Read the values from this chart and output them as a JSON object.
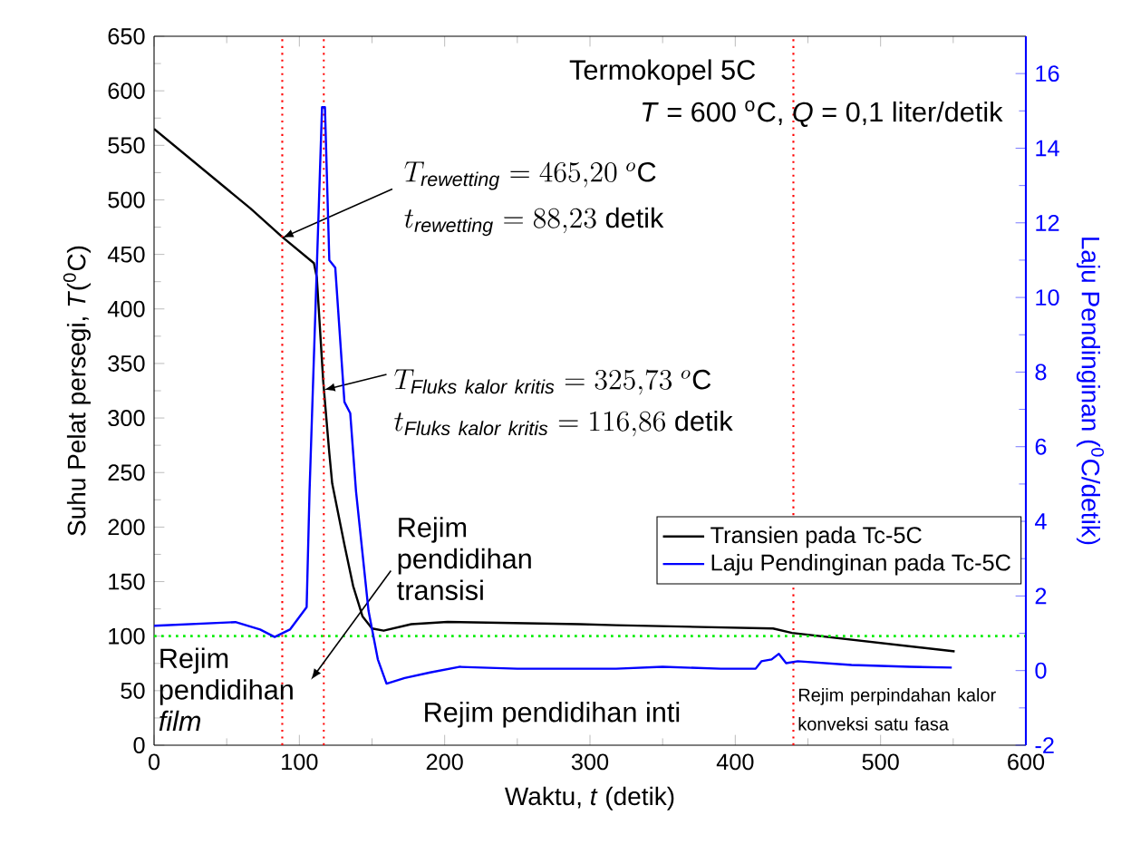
{
  "chart_data": {
    "type": "line",
    "title": "Termokopel 5C",
    "subtitle": "*T* = 600 $^{o}$C, *Q* = 0,1 liter/detik",
    "xlabel": "Waktu, *t* (detik)",
    "ylabel": "Suhu Pelat persegi, *T*($^{0}$C)",
    "y2label": "Laju Pendinginan ($^{0}$C/detik)",
    "series": [
      {
        "name": "Transien pada Tc-5C",
        "color": "#000000",
        "x": [
          0,
          66.5,
          88.2,
          110,
          112,
          116.4,
          120.6,
          122.6,
          131,
          137,
          143.5,
          150,
          158,
          177,
          202,
          293,
          318,
          426,
          439,
          551
        ],
        "values": [
          565,
          492,
          466,
          442,
          429,
          334,
          268,
          240,
          184,
          146,
          118,
          107,
          105,
          111,
          113,
          111,
          110,
          107,
          103,
          86
        ]
      },
      {
        "name": "Laju Pendinginan pada Tc-5C",
        "color": "#0000ff",
        "axis": "y2",
        "x": [
          0,
          56,
          73,
          83,
          93.5,
          105,
          107,
          115.6,
          117.6,
          120.6,
          124.7,
          131,
          135,
          139,
          147.6,
          154,
          160,
          172.5,
          190,
          210,
          250,
          293,
          318,
          350,
          390,
          414,
          418,
          425,
          430,
          435,
          443,
          480,
          520,
          549
        ],
        "values": [
          1.2,
          1.3,
          1.1,
          0.9,
          1.1,
          1.7,
          4.8,
          15.1,
          15.1,
          11.0,
          10.8,
          7.2,
          6.9,
          4.8,
          1.6,
          0.3,
          -0.35,
          -0.2,
          -0.05,
          0.1,
          0.05,
          0.05,
          0.05,
          0.1,
          0.05,
          0.05,
          0.25,
          0.3,
          0.45,
          0.2,
          0.25,
          0.15,
          0.1,
          0.08
        ]
      }
    ],
    "xlim": [
      0,
      600
    ],
    "xticks": [
      0,
      100,
      200,
      300,
      400,
      500,
      600
    ],
    "ylim": [
      0,
      650
    ],
    "yticks": [
      0,
      50,
      100,
      150,
      200,
      250,
      300,
      350,
      400,
      450,
      500,
      550,
      600,
      650
    ],
    "y2lim": [
      -2,
      17
    ],
    "y2ticks": [
      -2,
      0,
      2,
      4,
      6,
      8,
      10,
      12,
      14,
      16
    ],
    "legend": "right",
    "ref_lines": [
      {
        "axis": "x",
        "value": 88.23,
        "color": "#ff0000",
        "line_style": "dotted"
      },
      {
        "axis": "x",
        "value": 116.86,
        "color": "#ff0000",
        "line_style": "dotted"
      },
      {
        "axis": "x",
        "value": 440,
        "color": "#ff0000",
        "line_style": "dotted"
      },
      {
        "axis": "y",
        "value": 100,
        "color": "#00ee00",
        "line_style": "dotted"
      }
    ],
    "annotations": [
      {
        "text": "T_{\\mathit{rewetting}} = 465{,}20\\ {}^{o}\\mathrm{C}",
        "x": 88.23,
        "y": 465.2
      },
      "t_{\\mathit{rewetting}} = 88{,}23\\ \\mathrm{detik}",
      {
        "text": "T_{\\mathit{Fluks\\ kalor\\ kritis}} = 325{,}73\\ {}^{o}\\mathrm{C}",
        "x": 116.86,
        "y": 325.73
      },
      "t_{\\mathit{Fluks\\ kalor\\ kritis}} = 116{,}86\\ \\mathrm{detik}",
      "Rejim pendidihan transisi",
      "Rejim pendidihan *film*",
      "Rejim pendidihan inti",
      "Rejim perpindahan kalor konveksi satu fasa"
    ]
  }
}
